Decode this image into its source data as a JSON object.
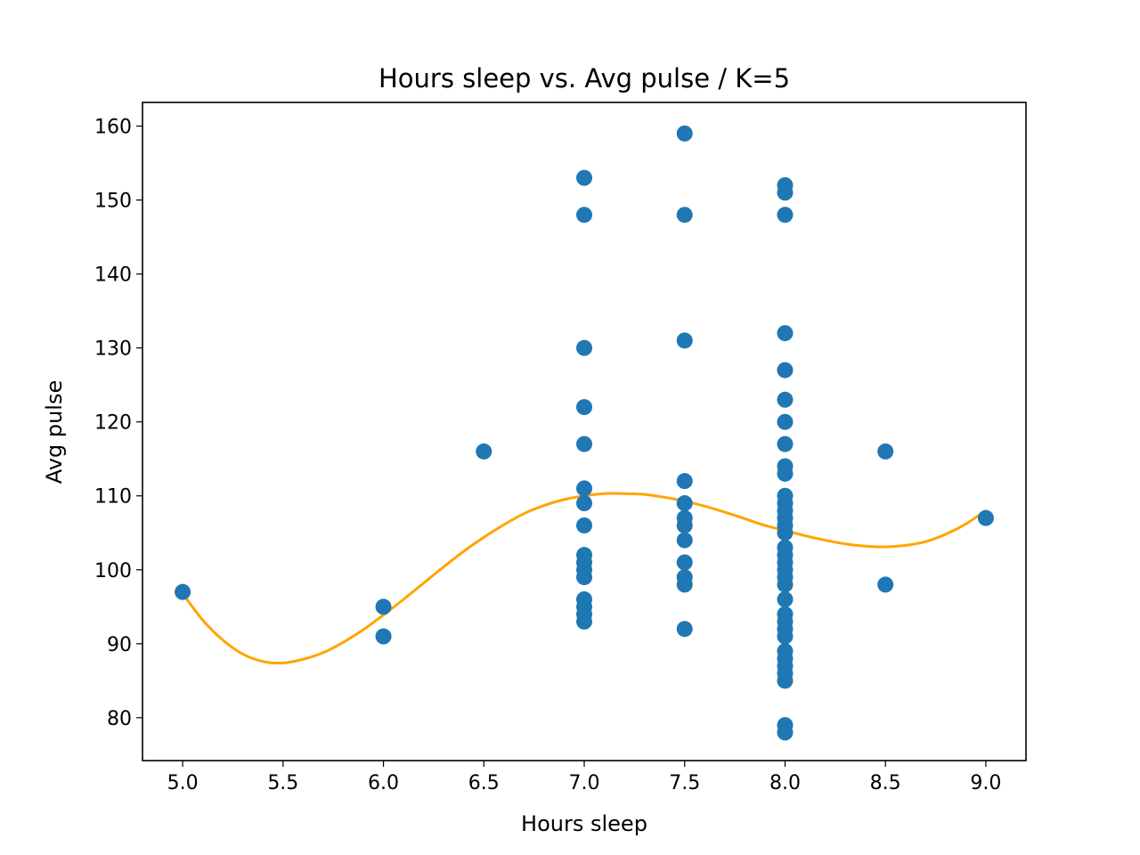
{
  "chart_data": {
    "type": "scatter",
    "title": "Hours sleep vs. Avg pulse / K=5",
    "xlabel": "Hours sleep",
    "ylabel": "Avg pulse",
    "xlim": [
      4.8,
      9.2
    ],
    "ylim": [
      74.2,
      163.2
    ],
    "xticks": [
      5.0,
      5.5,
      6.0,
      6.5,
      7.0,
      7.5,
      8.0,
      8.5,
      9.0
    ],
    "xtick_labels": [
      "5.0",
      "5.5",
      "6.0",
      "6.5",
      "7.0",
      "7.5",
      "8.0",
      "8.5",
      "9.0"
    ],
    "yticks": [
      80,
      90,
      100,
      110,
      120,
      130,
      140,
      150,
      160
    ],
    "ytick_labels": [
      "80",
      "90",
      "100",
      "110",
      "120",
      "130",
      "140",
      "150",
      "160"
    ],
    "grid": false,
    "colors": {
      "points": "#1f77b4",
      "fit": "#ffa500"
    },
    "points": [
      [
        5.0,
        97
      ],
      [
        6.0,
        95
      ],
      [
        6.0,
        91
      ],
      [
        6.5,
        116
      ],
      [
        7.0,
        153
      ],
      [
        7.0,
        148
      ],
      [
        7.0,
        130
      ],
      [
        7.0,
        122
      ],
      [
        7.0,
        117
      ],
      [
        7.0,
        111
      ],
      [
        7.0,
        109
      ],
      [
        7.0,
        106
      ],
      [
        7.0,
        102
      ],
      [
        7.0,
        101
      ],
      [
        7.0,
        100
      ],
      [
        7.0,
        99
      ],
      [
        7.0,
        96
      ],
      [
        7.0,
        95
      ],
      [
        7.0,
        94
      ],
      [
        7.0,
        93
      ],
      [
        7.5,
        159
      ],
      [
        7.5,
        148
      ],
      [
        7.5,
        131
      ],
      [
        7.5,
        112
      ],
      [
        7.5,
        109
      ],
      [
        7.5,
        107
      ],
      [
        7.5,
        106
      ],
      [
        7.5,
        104
      ],
      [
        7.5,
        101
      ],
      [
        7.5,
        99
      ],
      [
        7.5,
        98
      ],
      [
        7.5,
        92
      ],
      [
        8.0,
        152
      ],
      [
        8.0,
        151
      ],
      [
        8.0,
        148
      ],
      [
        8.0,
        132
      ],
      [
        8.0,
        127
      ],
      [
        8.0,
        123
      ],
      [
        8.0,
        120
      ],
      [
        8.0,
        117
      ],
      [
        8.0,
        114
      ],
      [
        8.0,
        113
      ],
      [
        8.0,
        110
      ],
      [
        8.0,
        109
      ],
      [
        8.0,
        108
      ],
      [
        8.0,
        107
      ],
      [
        8.0,
        106
      ],
      [
        8.0,
        105
      ],
      [
        8.0,
        103
      ],
      [
        8.0,
        102
      ],
      [
        8.0,
        101
      ],
      [
        8.0,
        100
      ],
      [
        8.0,
        99
      ],
      [
        8.0,
        98
      ],
      [
        8.0,
        96
      ],
      [
        8.0,
        94
      ],
      [
        8.0,
        93
      ],
      [
        8.0,
        92
      ],
      [
        8.0,
        91
      ],
      [
        8.0,
        89
      ],
      [
        8.0,
        88
      ],
      [
        8.0,
        87
      ],
      [
        8.0,
        86
      ],
      [
        8.0,
        85
      ],
      [
        8.0,
        79
      ],
      [
        8.0,
        78
      ],
      [
        8.5,
        116
      ],
      [
        8.5,
        98
      ],
      [
        9.0,
        107
      ]
    ],
    "fit_curve": [
      [
        5.0,
        96.8
      ],
      [
        5.1,
        93.2
      ],
      [
        5.2,
        90.5
      ],
      [
        5.3,
        88.6
      ],
      [
        5.4,
        87.6
      ],
      [
        5.5,
        87.4
      ],
      [
        5.6,
        87.9
      ],
      [
        5.7,
        88.8
      ],
      [
        5.8,
        90.2
      ],
      [
        5.9,
        91.9
      ],
      [
        6.0,
        93.9
      ],
      [
        6.1,
        96.0
      ],
      [
        6.2,
        98.2
      ],
      [
        6.3,
        100.4
      ],
      [
        6.4,
        102.5
      ],
      [
        6.5,
        104.4
      ],
      [
        6.6,
        106.1
      ],
      [
        6.7,
        107.6
      ],
      [
        6.8,
        108.7
      ],
      [
        6.9,
        109.5
      ],
      [
        7.0,
        110.0
      ],
      [
        7.1,
        110.3
      ],
      [
        7.2,
        110.3
      ],
      [
        7.3,
        110.2
      ],
      [
        7.4,
        109.8
      ],
      [
        7.5,
        109.3
      ],
      [
        7.6,
        108.6
      ],
      [
        7.7,
        107.8
      ],
      [
        7.8,
        106.9
      ],
      [
        7.9,
        106.0
      ],
      [
        8.0,
        105.3
      ],
      [
        8.1,
        104.6
      ],
      [
        8.2,
        104.0
      ],
      [
        8.3,
        103.5
      ],
      [
        8.4,
        103.2
      ],
      [
        8.5,
        103.1
      ],
      [
        8.6,
        103.3
      ],
      [
        8.7,
        103.8
      ],
      [
        8.8,
        104.8
      ],
      [
        8.9,
        106.2
      ],
      [
        9.0,
        108.0
      ]
    ]
  }
}
